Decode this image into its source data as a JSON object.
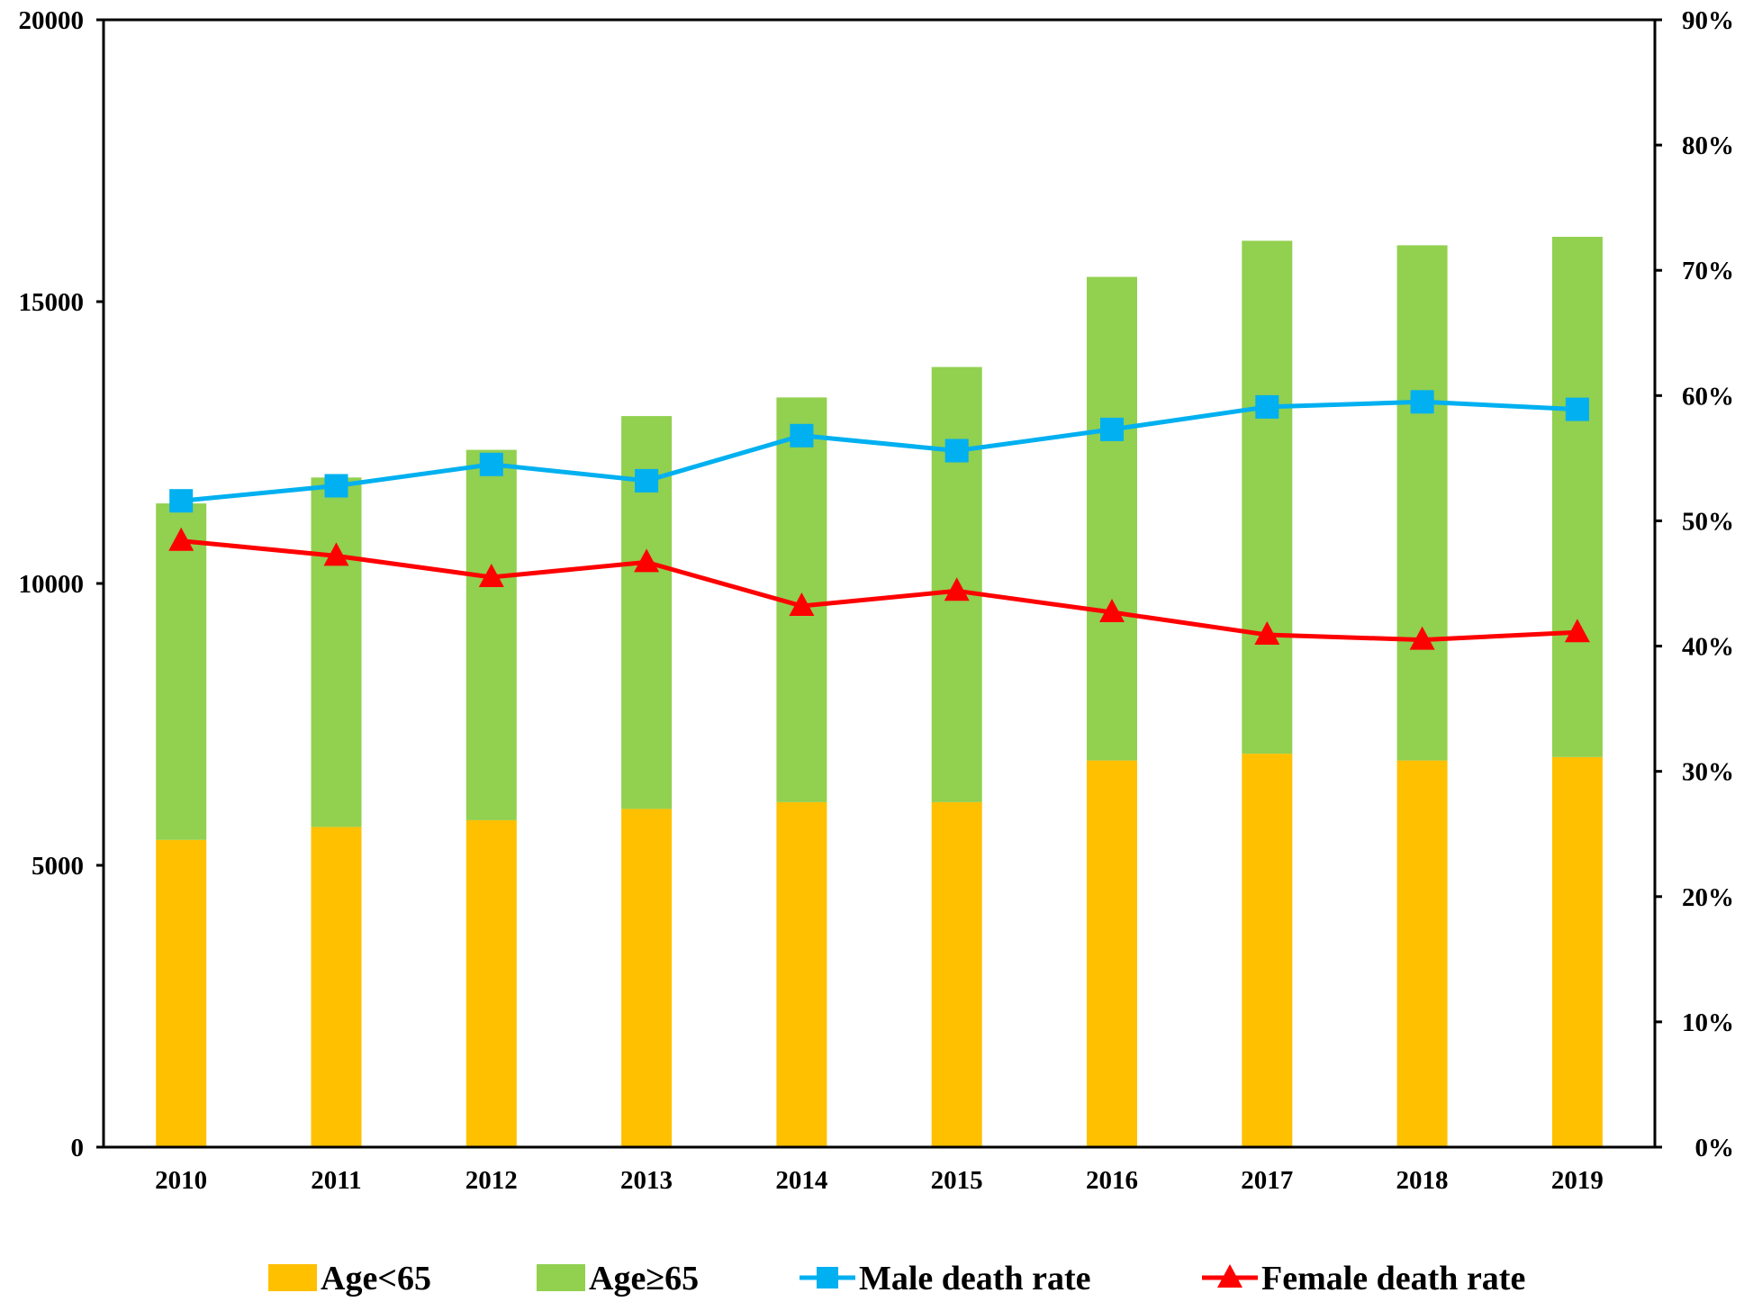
{
  "chart_data": {
    "type": "bar",
    "stacked": true,
    "categories": [
      "2010",
      "2011",
      "2012",
      "2013",
      "2014",
      "2015",
      "2016",
      "2017",
      "2018",
      "2019"
    ],
    "y_left": {
      "ylim": [
        0,
        20000
      ],
      "ticks": [
        "0",
        "5000",
        "10000",
        "15000",
        "20000"
      ]
    },
    "y_right": {
      "ylim": [
        0,
        0.9
      ],
      "ticks": [
        "0%",
        "10%",
        "20%",
        "30%",
        "40%",
        "50%",
        "60%",
        "70%",
        "80%",
        "90%"
      ]
    },
    "grid": false,
    "legend_position": "bottom",
    "series": [
      {
        "name": "Age<65",
        "kind": "bar",
        "axis": "left",
        "color": "#FFC000",
        "values": [
          5450,
          5680,
          5800,
          6000,
          6120,
          6120,
          6860,
          6980,
          6860,
          6920
        ]
      },
      {
        "name": "Age≥65",
        "kind": "bar",
        "axis": "left",
        "color": "#92D050",
        "values": [
          5970,
          6200,
          6570,
          6970,
          7180,
          7720,
          8580,
          9100,
          9140,
          9230
        ]
      },
      {
        "name": "Male death rate",
        "kind": "line",
        "axis": "right",
        "color": "#00B0F0",
        "marker": "square",
        "values": [
          0.516,
          0.528,
          0.545,
          0.532,
          0.568,
          0.556,
          0.573,
          0.591,
          0.595,
          0.589
        ]
      },
      {
        "name": "Female death rate",
        "kind": "line",
        "axis": "right",
        "color": "#FF0000",
        "marker": "triangle",
        "values": [
          0.484,
          0.472,
          0.455,
          0.467,
          0.432,
          0.444,
          0.427,
          0.409,
          0.405,
          0.411
        ]
      }
    ]
  }
}
